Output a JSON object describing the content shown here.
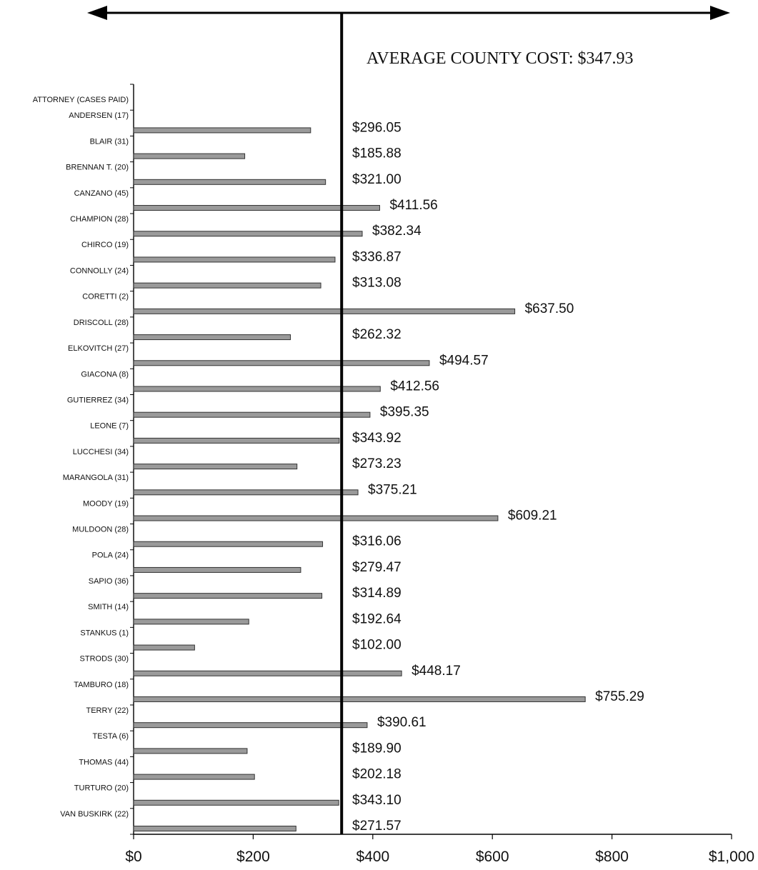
{
  "chart_data": {
    "type": "bar",
    "orientation": "horizontal",
    "header_label": "ATTORNEY (CASES PAID)",
    "categories": [
      "ANDERSEN (17)",
      "BLAIR (31)",
      "BRENNAN T. (20)",
      "CANZANO (45)",
      "CHAMPION (28)",
      "CHIRCO (19)",
      "CONNOLLY (24)",
      "CORETTI (2)",
      "DRISCOLL (28)",
      "ELKOVITCH (27)",
      "GIACONA (8)",
      "GUTIERREZ (34)",
      "LEONE (7)",
      "LUCCHESI (34)",
      "MARANGOLA (31)",
      "MOODY (19)",
      "MULDOON (28)",
      "POLA (24)",
      "SAPIO (36)",
      "SMITH (14)",
      "STANKUS (1)",
      "STRODS (30)",
      "TAMBURO (18)",
      "TERRY (22)",
      "TESTA (6)",
      "THOMAS (44)",
      "TURTURO (20)",
      "VAN BUSKIRK (22)"
    ],
    "values": [
      296.05,
      185.88,
      321.0,
      411.56,
      382.34,
      336.87,
      313.08,
      637.5,
      262.32,
      494.57,
      412.56,
      395.35,
      343.92,
      273.23,
      375.21,
      609.21,
      316.06,
      279.47,
      314.89,
      192.64,
      102.0,
      448.17,
      755.29,
      390.61,
      189.9,
      202.18,
      343.1,
      271.57
    ],
    "value_labels": [
      "$296.05",
      "$185.88",
      "$321.00",
      "$411.56",
      "$382.34",
      "$336.87",
      "$313.08",
      "$637.50",
      "$262.32",
      "$494.57",
      "$412.56",
      "$395.35",
      "$343.92",
      "$273.23",
      "$375.21",
      "$609.21",
      "$316.06",
      "$279.47",
      "$314.89",
      "$192.64",
      "$102.00",
      "$448.17",
      "$755.29",
      "$390.61",
      "$189.90",
      "$202.18",
      "$343.10",
      "$271.57"
    ],
    "xlim": [
      0,
      1000
    ],
    "x_ticks": [
      0,
      200,
      400,
      600,
      800,
      1000
    ],
    "x_tick_labels": [
      "$0",
      "$200",
      "$400",
      "$600",
      "$800",
      "$1,000"
    ],
    "reference_line": {
      "label": "AVERAGE COUNTY COST: $347.93",
      "value": 347.93
    },
    "grid": false,
    "legend": "none",
    "bar_color": "#9a9a9a"
  }
}
